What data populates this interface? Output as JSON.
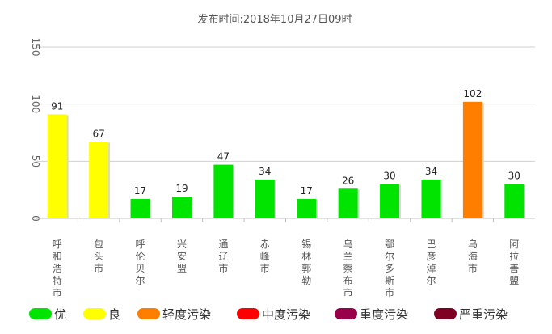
{
  "chart_data": {
    "type": "bar",
    "subtitle": "发布时间:2018年10月27日09时",
    "categories": [
      "呼和浩特市",
      "包头市",
      "呼伦贝尔市",
      "兴安盟",
      "通辽市",
      "赤峰市",
      "锡林郭勒盟",
      "乌兰察布市",
      "鄂尔多斯市",
      "巴彦淖尔市",
      "乌海市",
      "阿拉善盟"
    ],
    "categories_visible": [
      "呼和浩特市",
      "包头市",
      "呼伦贝尔",
      "兴安盟",
      "通辽市",
      "赤峰市",
      "锡林郭勒",
      "乌兰察布市",
      "鄂尔多斯市",
      "巴彦淖尔",
      "乌海市",
      "阿拉善盟"
    ],
    "values": [
      91,
      67,
      17,
      19,
      47,
      34,
      17,
      26,
      30,
      34,
      102,
      30
    ],
    "ylim": [
      0,
      150
    ],
    "yticks": [
      0,
      50,
      100,
      150
    ],
    "grid": true,
    "legend_position": "bottom",
    "legend": [
      {
        "label": "优",
        "color": "#00e400"
      },
      {
        "label": "良",
        "color": "#ffff00"
      },
      {
        "label": "轻度污染",
        "color": "#ff7e00"
      },
      {
        "label": "中度污染",
        "color": "#ff0000"
      },
      {
        "label": "重度污染",
        "color": "#99004c"
      },
      {
        "label": "严重污染",
        "color": "#7e0023"
      }
    ]
  }
}
